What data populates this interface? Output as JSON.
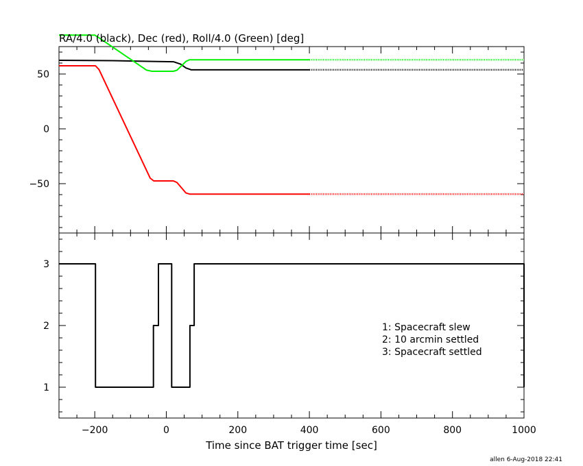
{
  "chart_data": [
    {
      "type": "line",
      "title": "RA/4.0 (black), Dec (red), Roll/4.0 (Green) [deg]",
      "xlim": [
        -300,
        1000
      ],
      "ylim": [
        -95,
        75
      ],
      "yticks": [
        50,
        0,
        -50
      ],
      "ytick_labels": [
        "50",
        "0",
        "−50"
      ],
      "grid": false,
      "series": [
        {
          "name": "RA/4.0",
          "color": "#000000",
          "x": [
            -300,
            -150,
            -40,
            20,
            40,
            55,
            70,
            400,
            1000
          ],
          "y": [
            62.5,
            62.2,
            61.5,
            61.2,
            59,
            55.5,
            53.8,
            53.8,
            53.8
          ],
          "dotted_after": 400
        },
        {
          "name": "Dec",
          "color": "#ff0000",
          "x": [
            -300,
            -198,
            -188,
            -45,
            -35,
            20,
            30,
            55,
            65,
            400,
            1000
          ],
          "y": [
            57.5,
            57.5,
            54,
            -45,
            -47.5,
            -47.5,
            -49,
            -58.5,
            -59.5,
            -59.5,
            -59.5
          ],
          "dotted_after": 400
        },
        {
          "name": "Roll/4.0",
          "color": "#00ee00",
          "x": [
            -300,
            -200,
            -188,
            -55,
            -40,
            20,
            30,
            55,
            65,
            400,
            1000
          ],
          "y": [
            85.5,
            85.5,
            83,
            53.5,
            52.5,
            52.5,
            53.5,
            61.5,
            63,
            63,
            63
          ],
          "dotted_after": 400
        }
      ]
    },
    {
      "type": "line",
      "xlabel": "Time since BAT trigger time [sec]",
      "xlim": [
        -300,
        1000
      ],
      "ylim": [
        0.5,
        3.5
      ],
      "yticks": [
        1,
        2,
        3
      ],
      "ytick_labels": [
        "1",
        "2",
        "3"
      ],
      "xticks": [
        -200,
        0,
        200,
        400,
        600,
        800,
        1000
      ],
      "xtick_labels": [
        "−200",
        "0",
        "200",
        "400",
        "600",
        "800",
        "1000"
      ],
      "grid": false,
      "annotations": [
        "1: Spacecraft slew",
        "2: 10 arcmin settled",
        "3: Spacecraft settled"
      ],
      "series": [
        {
          "color": "#000000",
          "step": true,
          "x": [
            -300,
            -198,
            -198,
            -36,
            -36,
            -22,
            -22,
            15,
            15,
            66,
            66,
            78,
            78,
            1000,
            1000
          ],
          "y": [
            3,
            3,
            1,
            1,
            2,
            2,
            3,
            3,
            1,
            1,
            2,
            2,
            3,
            3,
            1
          ]
        }
      ]
    }
  ],
  "footer": {
    "credit": "allen  6-Aug-2018 22:41"
  }
}
